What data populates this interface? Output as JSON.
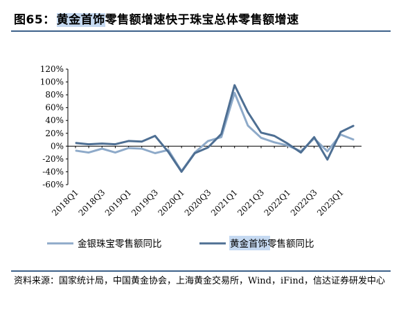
{
  "title": {
    "label": "图65：",
    "highlight": "黄金首饰",
    "rest": "零售额增速快于珠宝总体零售额增速"
  },
  "source_note": "资料来源：国家统计局，中国黄金协会，上海黄金交易所，Wind，iFind，信达证券研发中心",
  "colors": {
    "rule": "#3c6089",
    "highlight_bg": "#c5d9f1",
    "series_light": "#8eaac9",
    "series_dark": "#4e6f93"
  },
  "chart_data": {
    "type": "line",
    "x": [
      "2018Q1",
      "2018Q2",
      "2018Q3",
      "2018Q4",
      "2019Q1",
      "2019Q2",
      "2019Q3",
      "2019Q4",
      "2020Q1",
      "2020Q2",
      "2020Q3",
      "2020Q4",
      "2021Q1",
      "2021Q2",
      "2021Q3",
      "2021Q4",
      "2022Q1",
      "2022Q2",
      "2022Q3",
      "2022Q4",
      "2023Q1",
      "2023Q2"
    ],
    "xticks": [
      "2018Q1",
      "2018Q3",
      "2019Q1",
      "2019Q3",
      "2020Q1",
      "2020Q3",
      "2021Q1",
      "2021Q3",
      "2022Q1",
      "2022Q3",
      "2023Q1"
    ],
    "yticks": [
      "120%",
      "100%",
      "80%",
      "60%",
      "40%",
      "20%",
      "0%",
      "-20%",
      "-40%",
      "-60%"
    ],
    "ylim": [
      -60,
      120
    ],
    "series": [
      {
        "name": "金银珠宝零售额同比",
        "color": "#8eaac9",
        "values": [
          -7,
          -10,
          -4,
          -10,
          -3,
          -4,
          -11,
          -6,
          -39,
          -10,
          8,
          14,
          83,
          32,
          13,
          6,
          1,
          -8,
          12,
          -8,
          18,
          10
        ]
      },
      {
        "name": "黄金首饰零售额同比",
        "color": "#4e6f93",
        "values": [
          5,
          3,
          4,
          3,
          8,
          7,
          16,
          -9,
          -40,
          -11,
          -2,
          19,
          95,
          53,
          21,
          16,
          4,
          -10,
          14,
          -21,
          22,
          32
        ]
      }
    ],
    "legend": {
      "placement": "bottom",
      "highlighted_item": "黄金首饰零售额同比"
    }
  }
}
